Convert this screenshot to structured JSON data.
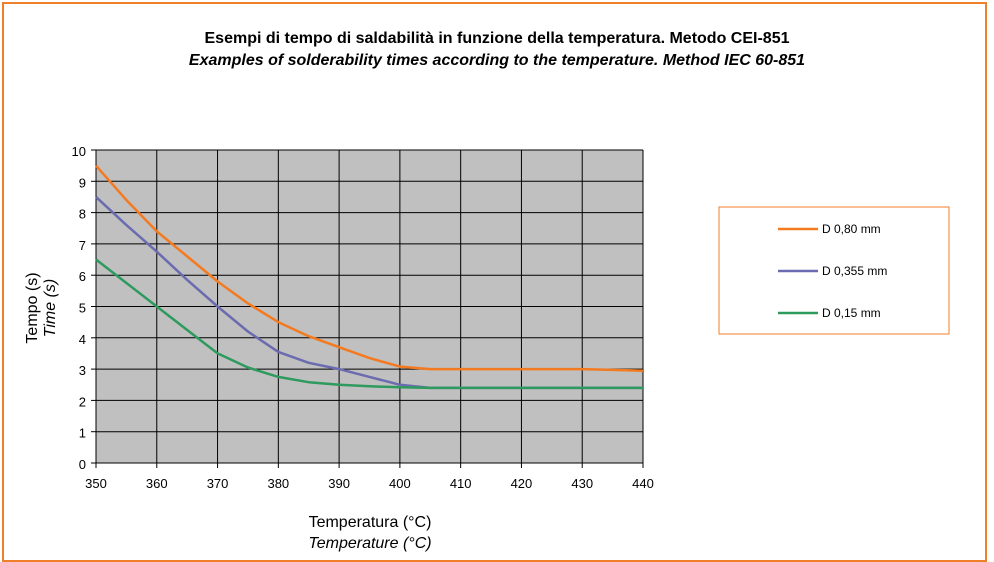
{
  "titles": {
    "line1": "Esempi di tempo di saldabilità in funzione della temperatura. Metodo CEI-851",
    "line2": "Examples of solderability times according to the temperature. Method IEC 60-851"
  },
  "colors": {
    "frame": "#f07f2a",
    "plot_bg": "#c0c0c0",
    "grid": "#000000",
    "legend_border": "#f07f2a"
  },
  "chart_data": {
    "type": "line",
    "title": "Esempi di tempo di saldabilità in funzione della temperatura. Metodo CEI-851",
    "subtitle": "Examples of solderability times according to the temperature. Method IEC 60-851",
    "xlabel": "Temperatura (°C)",
    "xlabel_italic": "Temperature (°C)",
    "ylabel": "Tempo (s)",
    "ylabel_italic": "Time (s)",
    "xlim": [
      350,
      440
    ],
    "ylim": [
      0,
      10
    ],
    "x_ticks": [
      350,
      360,
      370,
      380,
      390,
      400,
      410,
      420,
      430,
      440
    ],
    "y_ticks": [
      0,
      1,
      2,
      3,
      4,
      5,
      6,
      7,
      8,
      9,
      10
    ],
    "grid": true,
    "legend_position": "right",
    "series": [
      {
        "name": "D 0,80 mm",
        "color": "#f47a20",
        "x": [
          350,
          355,
          360,
          365,
          370,
          375,
          380,
          385,
          390,
          395,
          400,
          405,
          410,
          420,
          430,
          440
        ],
        "y": [
          9.5,
          8.4,
          7.4,
          6.6,
          5.8,
          5.1,
          4.5,
          4.05,
          3.7,
          3.35,
          3.08,
          3.0,
          3.0,
          3.0,
          3.0,
          2.95
        ]
      },
      {
        "name": "D 0,355 mm",
        "color": "#6b6bb0",
        "x": [
          350,
          355,
          360,
          365,
          370,
          375,
          380,
          385,
          390,
          395,
          400,
          405,
          410,
          420,
          430,
          440
        ],
        "y": [
          8.5,
          7.6,
          6.75,
          5.85,
          5.0,
          4.2,
          3.55,
          3.2,
          3.0,
          2.75,
          2.5,
          2.4,
          2.4,
          2.4,
          2.4,
          2.4
        ]
      },
      {
        "name": "D 0,15 mm",
        "color": "#2e9a5e",
        "x": [
          350,
          355,
          360,
          365,
          370,
          375,
          380,
          385,
          390,
          395,
          400,
          405,
          410,
          420,
          430,
          440
        ],
        "y": [
          6.5,
          5.75,
          5.0,
          4.25,
          3.5,
          3.05,
          2.75,
          2.58,
          2.5,
          2.45,
          2.42,
          2.4,
          2.4,
          2.4,
          2.4,
          2.4
        ]
      }
    ]
  }
}
